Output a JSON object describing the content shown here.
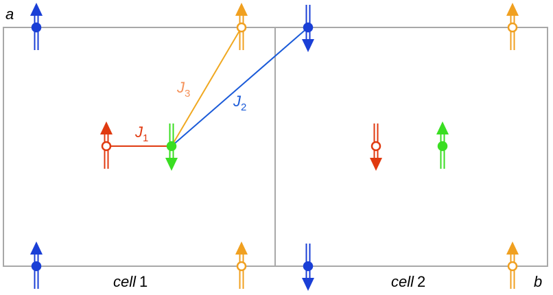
{
  "axes": {
    "a": "a",
    "b": "b"
  },
  "cells": [
    {
      "name": "cell",
      "number": "1"
    },
    {
      "name": "cell",
      "number": "2"
    }
  ],
  "couplings": [
    {
      "symbol": "J",
      "subscript": "1"
    },
    {
      "symbol": "J",
      "subscript": "2"
    },
    {
      "symbol": "J",
      "subscript": "3"
    }
  ]
}
